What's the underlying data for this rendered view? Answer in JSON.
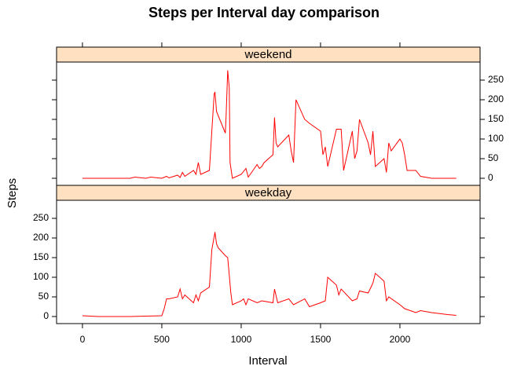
{
  "chart_data": {
    "type": "line",
    "title": "Steps per Interval day comparison",
    "xlabel": "Interval",
    "ylabel": "Steps",
    "xlim": [
      -163,
      2505
    ],
    "xticks": [
      0,
      500,
      1000,
      1500,
      2000
    ],
    "ylim": [
      -18,
      296
    ],
    "yticks": [
      0,
      50,
      100,
      150,
      200,
      250
    ],
    "strip_color": "#ffe0c0",
    "series": [
      {
        "name": "weekend",
        "color": "#ff0000",
        "x": [
          0,
          100,
          200,
          300,
          330,
          400,
          430,
          500,
          530,
          545,
          600,
          615,
          630,
          645,
          700,
          715,
          730,
          745,
          800,
          815,
          830,
          835,
          845,
          900,
          905,
          915,
          925,
          930,
          945,
          1000,
          1030,
          1045,
          1100,
          1115,
          1130,
          1145,
          1200,
          1210,
          1220,
          1230,
          1300,
          1315,
          1330,
          1345,
          1400,
          1430,
          1500,
          1515,
          1530,
          1545,
          1600,
          1630,
          1645,
          1700,
          1715,
          1730,
          1745,
          1800,
          1815,
          1830,
          1845,
          1900,
          1915,
          1930,
          1945,
          2000,
          2015,
          2030,
          2045,
          2100,
          2130,
          2200,
          2355
        ],
        "values": [
          0,
          0,
          0,
          0,
          3,
          0,
          3,
          0,
          5,
          1,
          8,
          2,
          15,
          5,
          20,
          10,
          40,
          10,
          20,
          120,
          215,
          220,
          170,
          115,
          160,
          275,
          230,
          40,
          0,
          10,
          25,
          3,
          35,
          25,
          30,
          40,
          60,
          155,
          90,
          80,
          110,
          70,
          40,
          200,
          150,
          140,
          120,
          60,
          80,
          30,
          125,
          125,
          20,
          120,
          50,
          70,
          150,
          90,
          60,
          120,
          30,
          50,
          15,
          90,
          70,
          100,
          90,
          60,
          20,
          20,
          5,
          0,
          0
        ]
      },
      {
        "name": "weekday",
        "color": "#ff0000",
        "x": [
          0,
          100,
          200,
          300,
          400,
          500,
          515,
          530,
          545,
          600,
          615,
          630,
          645,
          700,
          715,
          730,
          745,
          800,
          815,
          835,
          845,
          855,
          900,
          915,
          935,
          945,
          1000,
          1015,
          1030,
          1045,
          1100,
          1130,
          1200,
          1210,
          1230,
          1300,
          1330,
          1400,
          1430,
          1500,
          1530,
          1545,
          1600,
          1615,
          1630,
          1700,
          1730,
          1745,
          1800,
          1830,
          1845,
          1900,
          1915,
          1930,
          2000,
          2030,
          2100,
          2130,
          2200,
          2300,
          2355
        ],
        "values": [
          2,
          0,
          0,
          0,
          1,
          2,
          20,
          45,
          45,
          50,
          70,
          45,
          55,
          35,
          55,
          40,
          60,
          75,
          170,
          215,
          185,
          175,
          155,
          150,
          60,
          30,
          40,
          45,
          30,
          45,
          35,
          40,
          35,
          70,
          35,
          45,
          30,
          45,
          25,
          35,
          40,
          100,
          80,
          55,
          70,
          40,
          45,
          65,
          60,
          85,
          110,
          90,
          40,
          50,
          30,
          20,
          10,
          15,
          10,
          5,
          3
        ]
      }
    ]
  }
}
